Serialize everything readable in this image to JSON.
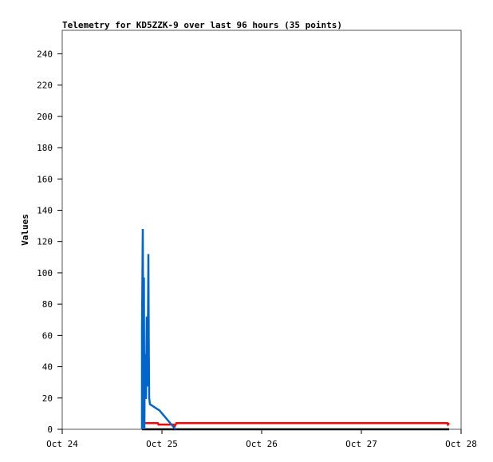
{
  "chart_data": {
    "type": "line",
    "title": "Telemetry for KD5ZZK-9 over last 96 hours (35 points)",
    "xlabel": "",
    "ylabel": "Values",
    "ylim": [
      0,
      255
    ],
    "yticks": [
      0,
      20,
      40,
      60,
      80,
      100,
      120,
      140,
      160,
      180,
      200,
      220,
      240
    ],
    "xlim": [
      "10-24 00:00",
      "10-28 00:00"
    ],
    "xticks": [
      {
        "t": "10-24 00:00",
        "label": "Oct 24"
      },
      {
        "t": "10-25 00:00",
        "label": "Oct 25"
      },
      {
        "t": "10-26 00:00",
        "label": "Oct 26"
      },
      {
        "t": "10-27 00:00",
        "label": "Oct 27"
      },
      {
        "t": "10-28 00:00",
        "label": "Oct 28"
      }
    ],
    "grid": false,
    "series": [
      {
        "color": "#000000",
        "points": [
          [
            "10-24 19:12",
            0
          ],
          [
            "10-27 21:07",
            0
          ]
        ]
      },
      {
        "color": "#ff0000",
        "points": [
          [
            "10-24 19:58",
            4
          ],
          [
            "10-24 23:00",
            4
          ],
          [
            "10-24 23:10",
            3
          ],
          [
            "10-25 02:50",
            3
          ],
          [
            "10-25 03:05",
            2
          ],
          [
            "10-25 03:30",
            4
          ],
          [
            "10-27 20:40",
            4
          ],
          [
            "10-27 20:50",
            3
          ],
          [
            "10-27 21:07",
            4
          ]
        ]
      },
      {
        "color": "#0066cc",
        "points": [
          [
            "10-24 19:12",
            0
          ],
          [
            "10-24 19:12",
            64
          ],
          [
            "10-24 19:23",
            128
          ],
          [
            "10-24 19:35",
            0
          ],
          [
            "10-24 19:40",
            97
          ],
          [
            "10-24 19:47",
            0
          ],
          [
            "10-24 19:52",
            48
          ],
          [
            "10-24 19:58",
            20
          ],
          [
            "10-24 20:10",
            20
          ],
          [
            "10-24 20:21",
            72
          ],
          [
            "10-24 20:27",
            28
          ],
          [
            "10-24 20:33",
            28
          ],
          [
            "10-24 20:44",
            112
          ],
          [
            "10-24 20:50",
            56
          ],
          [
            "10-24 20:56",
            20
          ],
          [
            "10-24 21:07",
            16
          ],
          [
            "10-24 23:25",
            12
          ],
          [
            "10-25 03:16",
            0
          ]
        ]
      }
    ]
  }
}
